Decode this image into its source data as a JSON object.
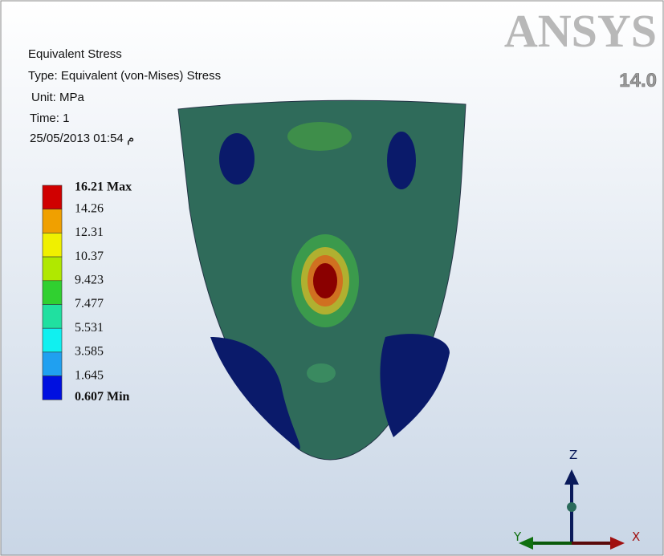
{
  "logo": {
    "brand": "ANSYS",
    "version": "14.0"
  },
  "header": {
    "lines": [
      "Equivalent Stress",
      "Type: Equivalent (von-Mises) Stress",
      "Unit: MPa",
      "Time: 1",
      "25/05/2013 01:54 م"
    ]
  },
  "legend": {
    "levels": [
      "16.21 Max",
      "14.26",
      "12.31",
      "10.37",
      "9.423",
      "7.477",
      "5.531",
      "3.585",
      "1.645",
      "0.607 Min"
    ],
    "colors": [
      "#d00000",
      "#f0a000",
      "#f0f000",
      "#b0e800",
      "#30d030",
      "#20e0a0",
      "#10f0f0",
      "#20a0f0",
      "#0010e0"
    ]
  },
  "triad": {
    "z": "Z",
    "y": "Y",
    "x": "X"
  }
}
